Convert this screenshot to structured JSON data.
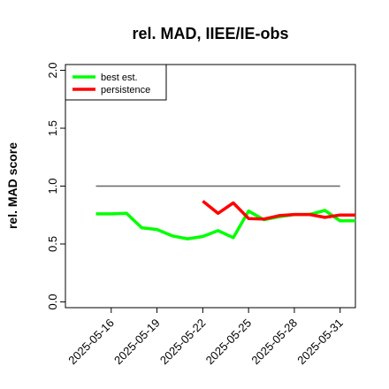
{
  "chart_data": {
    "type": "line",
    "title": "rel. MAD, IIEE/IE-obs",
    "xlabel": "",
    "ylabel": "rel. MAD score",
    "x_ticks": [
      "2025-05-16",
      "2025-05-19",
      "2025-05-22",
      "2025-05-25",
      "2025-05-28",
      "2025-05-31"
    ],
    "x_range": [
      "2025-05-13",
      "2025-06-01"
    ],
    "ylim": [
      -0.05,
      2.05
    ],
    "y_ticks": [
      "0.0",
      "0.5",
      "1.0",
      "1.5",
      "2.0"
    ],
    "reference_line": {
      "y": 1.0,
      "from": "2025-05-15",
      "to": "2025-05-31",
      "color": "#666666"
    },
    "legend_position": "top-left",
    "grid": false,
    "series": [
      {
        "name": "best est.",
        "color": "#00ff00",
        "points": [
          [
            "2025-05-15",
            0.76
          ],
          [
            "2025-05-16",
            0.76
          ],
          [
            "2025-05-17",
            0.765
          ],
          [
            "2025-05-18",
            0.64
          ],
          [
            "2025-05-19",
            0.625
          ],
          [
            "2025-05-20",
            0.57
          ],
          [
            "2025-05-21",
            0.545
          ],
          [
            "2025-05-22",
            0.565
          ],
          [
            "2025-05-23",
            0.615
          ],
          [
            "2025-05-24",
            0.555
          ],
          [
            "2025-05-25",
            0.785
          ],
          [
            "2025-05-26",
            0.71
          ],
          [
            "2025-05-27",
            0.735
          ],
          [
            "2025-05-28",
            0.755
          ],
          [
            "2025-05-29",
            0.755
          ],
          [
            "2025-05-30",
            0.79
          ],
          [
            "2025-05-31",
            0.7
          ],
          [
            "2025-06-01",
            0.7
          ]
        ]
      },
      {
        "name": "persistence",
        "color": "#ff0000",
        "points": [
          [
            "2025-05-22",
            0.87
          ],
          [
            "2025-05-23",
            0.765
          ],
          [
            "2025-05-24",
            0.855
          ],
          [
            "2025-05-25",
            0.72
          ],
          [
            "2025-05-26",
            0.715
          ],
          [
            "2025-05-27",
            0.745
          ],
          [
            "2025-05-28",
            0.755
          ],
          [
            "2025-05-29",
            0.755
          ],
          [
            "2025-05-30",
            0.73
          ],
          [
            "2025-05-31",
            0.75
          ],
          [
            "2025-06-01",
            0.75
          ]
        ]
      }
    ]
  }
}
